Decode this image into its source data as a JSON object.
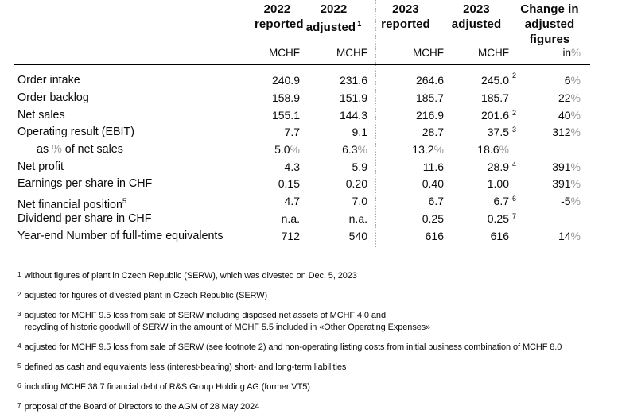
{
  "colors": {
    "text": "#0a0a0a",
    "percent_sign": "#9b9b9b",
    "rule": "#000000",
    "dashed_divider": "#a9a9a9"
  },
  "table": {
    "columns": [
      {
        "lines": [
          "2022",
          "reported"
        ],
        "sup": ""
      },
      {
        "lines": [
          "2022",
          "adjusted"
        ],
        "sup": "1"
      },
      {
        "lines": [
          "2023",
          "reported"
        ],
        "sup": ""
      },
      {
        "lines": [
          "2023",
          "adjusted"
        ],
        "sup": ""
      },
      {
        "lines": [
          "Change in",
          "adjusted",
          "figures"
        ],
        "sup": ""
      }
    ],
    "units": [
      "MCHF",
      "MCHF",
      "MCHF",
      "MCHF",
      "in%"
    ],
    "rows": [
      {
        "label": "Order intake",
        "indent": false,
        "label_sup": "",
        "values": [
          {
            "v": "240.9",
            "sup": ""
          },
          {
            "v": "231.6",
            "sup": ""
          },
          {
            "v": "264.6",
            "sup": ""
          },
          {
            "v": "245.0",
            "sup": "2"
          },
          {
            "v": "6%",
            "sup": ""
          }
        ]
      },
      {
        "label": "Order backlog",
        "indent": false,
        "label_sup": "",
        "values": [
          {
            "v": "158.9",
            "sup": ""
          },
          {
            "v": "151.9",
            "sup": ""
          },
          {
            "v": "185.7",
            "sup": ""
          },
          {
            "v": "185.7",
            "sup": ""
          },
          {
            "v": "22%",
            "sup": ""
          }
        ]
      },
      {
        "label": "Net sales",
        "indent": false,
        "label_sup": "",
        "values": [
          {
            "v": "155.1",
            "sup": ""
          },
          {
            "v": "144.3",
            "sup": ""
          },
          {
            "v": "216.9",
            "sup": ""
          },
          {
            "v": "201.6",
            "sup": "2"
          },
          {
            "v": "40%",
            "sup": ""
          }
        ]
      },
      {
        "label": "Operating result (EBIT)",
        "indent": false,
        "label_sup": "",
        "values": [
          {
            "v": "7.7",
            "sup": ""
          },
          {
            "v": "9.1",
            "sup": ""
          },
          {
            "v": "28.7",
            "sup": ""
          },
          {
            "v": "37.5",
            "sup": "3"
          },
          {
            "v": "312%",
            "sup": ""
          }
        ]
      },
      {
        "label": "as % of net sales",
        "indent": true,
        "label_sup": "",
        "values": [
          {
            "v": "5.0%",
            "sup": ""
          },
          {
            "v": "6.3%",
            "sup": ""
          },
          {
            "v": "13.2%",
            "sup": ""
          },
          {
            "v": "18.6%",
            "sup": ""
          },
          {
            "v": "",
            "sup": ""
          }
        ]
      },
      {
        "label": "Net profit",
        "indent": false,
        "label_sup": "",
        "values": [
          {
            "v": "4.3",
            "sup": ""
          },
          {
            "v": "5.9",
            "sup": ""
          },
          {
            "v": "11.6",
            "sup": ""
          },
          {
            "v": "28.9",
            "sup": "4"
          },
          {
            "v": "391%",
            "sup": ""
          }
        ]
      },
      {
        "label": "Earnings per share in CHF",
        "indent": false,
        "label_sup": "",
        "values": [
          {
            "v": "0.15",
            "sup": ""
          },
          {
            "v": "0.20",
            "sup": ""
          },
          {
            "v": "0.40",
            "sup": ""
          },
          {
            "v": "1.00",
            "sup": ""
          },
          {
            "v": "391%",
            "sup": ""
          }
        ]
      },
      {
        "label": "Net financial position",
        "indent": false,
        "label_sup": "5",
        "values": [
          {
            "v": "4.7",
            "sup": ""
          },
          {
            "v": "7.0",
            "sup": ""
          },
          {
            "v": "6.7",
            "sup": ""
          },
          {
            "v": "6.7",
            "sup": "6"
          },
          {
            "v": "-5%",
            "sup": ""
          }
        ]
      },
      {
        "label": "Dividend per share in CHF",
        "indent": false,
        "label_sup": "",
        "values": [
          {
            "v": "n.a.",
            "sup": ""
          },
          {
            "v": "n.a.",
            "sup": ""
          },
          {
            "v": "0.25",
            "sup": ""
          },
          {
            "v": "0.25",
            "sup": "7"
          },
          {
            "v": "",
            "sup": ""
          }
        ]
      },
      {
        "label": "Year-end Number of full-time equivalents",
        "indent": false,
        "label_sup": "",
        "values": [
          {
            "v": "712",
            "sup": ""
          },
          {
            "v": "540",
            "sup": ""
          },
          {
            "v": "616",
            "sup": ""
          },
          {
            "v": "616",
            "sup": ""
          },
          {
            "v": "14%",
            "sup": ""
          }
        ]
      }
    ]
  },
  "footnotes": [
    {
      "sup": "1",
      "text": "without figures of plant in Czech Republic (SERW), which was divested on Dec. 5, 2023"
    },
    {
      "sup": "2",
      "text": "adjusted for figures of divested plant in Czech Republic (SERW)"
    },
    {
      "sup": "3",
      "text": "adjusted for MCHF 9.5 loss from sale of SERW including disposed net assets of MCHF 4.0 and\nrecycling of historic goodwill of SERW in the amount of MCHF 5.5 included in «Other Operating Expenses»"
    },
    {
      "sup": "4",
      "text": "adjusted for MCHF 9.5 loss from sale of SERW (see footnote 2) and non-operating listing costs from initial business combination of MCHF 8.0"
    },
    {
      "sup": "5",
      "text": "defined as cash and equivalents less (interest-bearing) short- and long-term liabilities"
    },
    {
      "sup": "6",
      "text": "including MCHF 38.7 financial debt of R&S Group Holding AG (former VT5)"
    },
    {
      "sup": "7",
      "text": "proposal of the Board of Directors to the AGM of 28 May 2024"
    }
  ]
}
